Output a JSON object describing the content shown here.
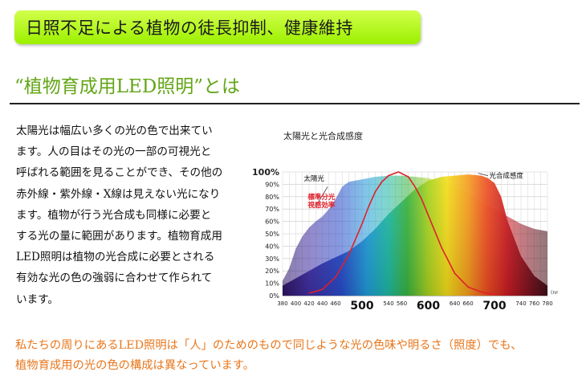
{
  "banner": {
    "title": "日照不足による植物の徒長抑制、健康維持"
  },
  "section": {
    "heading": "“植物育成用LED照明”とは"
  },
  "body": {
    "lines": [
      "太陽光は幅広い多くの光の色で出来てい",
      "ます。人の目はその光の一部の可視光と",
      "呼ばれる範囲を見ることができ、その他の",
      "赤外線・紫外線・X線は見えない光になり",
      "ます。植物が行う光合成も同様に必要と",
      "する光の量に範囲があります。植物育成用",
      "LED照明は植物の光合成に必要とされる",
      "有効な光の色の強弱に合わせて作られて",
      "います。"
    ]
  },
  "chart_data": {
    "type": "area",
    "title": "太陽光と光合成感度",
    "x_unit": "(nm)",
    "xlim": [
      380,
      780
    ],
    "ylim": [
      0,
      100
    ],
    "y_ticks": [
      "0%",
      "10%",
      "20%",
      "30%",
      "40%",
      "50%",
      "60%",
      "70%",
      "80%",
      "90%",
      "100%"
    ],
    "x_ticks_small": [
      "380",
      "400",
      "420",
      "440",
      "460",
      "540",
      "560",
      "640",
      "660",
      "740",
      "760",
      "780"
    ],
    "x_ticks_large": [
      "500",
      "600",
      "700"
    ],
    "series": [
      {
        "name": "太陽光",
        "color": "#8a6fd0",
        "x": [
          380,
          390,
          400,
          410,
          420,
          430,
          440,
          450,
          460,
          470,
          480,
          490,
          500,
          520,
          540,
          560,
          580,
          600,
          620,
          640,
          660,
          680,
          700,
          720,
          740,
          760,
          780
        ],
        "y": [
          12,
          22,
          38,
          48,
          55,
          60,
          64,
          70,
          78,
          88,
          92,
          93,
          94,
          96,
          97,
          97,
          96,
          95,
          92,
          88,
          83,
          76,
          70,
          64,
          58,
          54,
          52
        ]
      },
      {
        "name": "光合成感度",
        "color": "#f07a2a",
        "x": [
          380,
          400,
          420,
          440,
          460,
          480,
          500,
          520,
          540,
          560,
          580,
          600,
          620,
          640,
          660,
          680,
          690,
          700,
          710,
          720,
          740,
          760,
          780
        ],
        "y": [
          8,
          14,
          20,
          26,
          31,
          36,
          44,
          54,
          66,
          76,
          86,
          93,
          96,
          97,
          98,
          97,
          95,
          91,
          80,
          60,
          32,
          16,
          8
        ]
      },
      {
        "name": "標準分光視感効率",
        "color": "#e0202a",
        "x": [
          420,
          440,
          460,
          480,
          500,
          510,
          520,
          530,
          540,
          555,
          570,
          580,
          590,
          600,
          610,
          620,
          640,
          660,
          680,
          700
        ],
        "y": [
          2,
          5,
          15,
          33,
          58,
          72,
          84,
          92,
          97,
          100,
          96,
          88,
          78,
          65,
          52,
          39,
          18,
          7,
          3,
          1
        ]
      }
    ]
  },
  "footer": {
    "lines": [
      "私たちの周りにあるLED照明は「人」のためのもので同じような光の色味や明るさ（照度）でも、",
      "植物育成用の光の色の構成は異なっています。"
    ]
  }
}
